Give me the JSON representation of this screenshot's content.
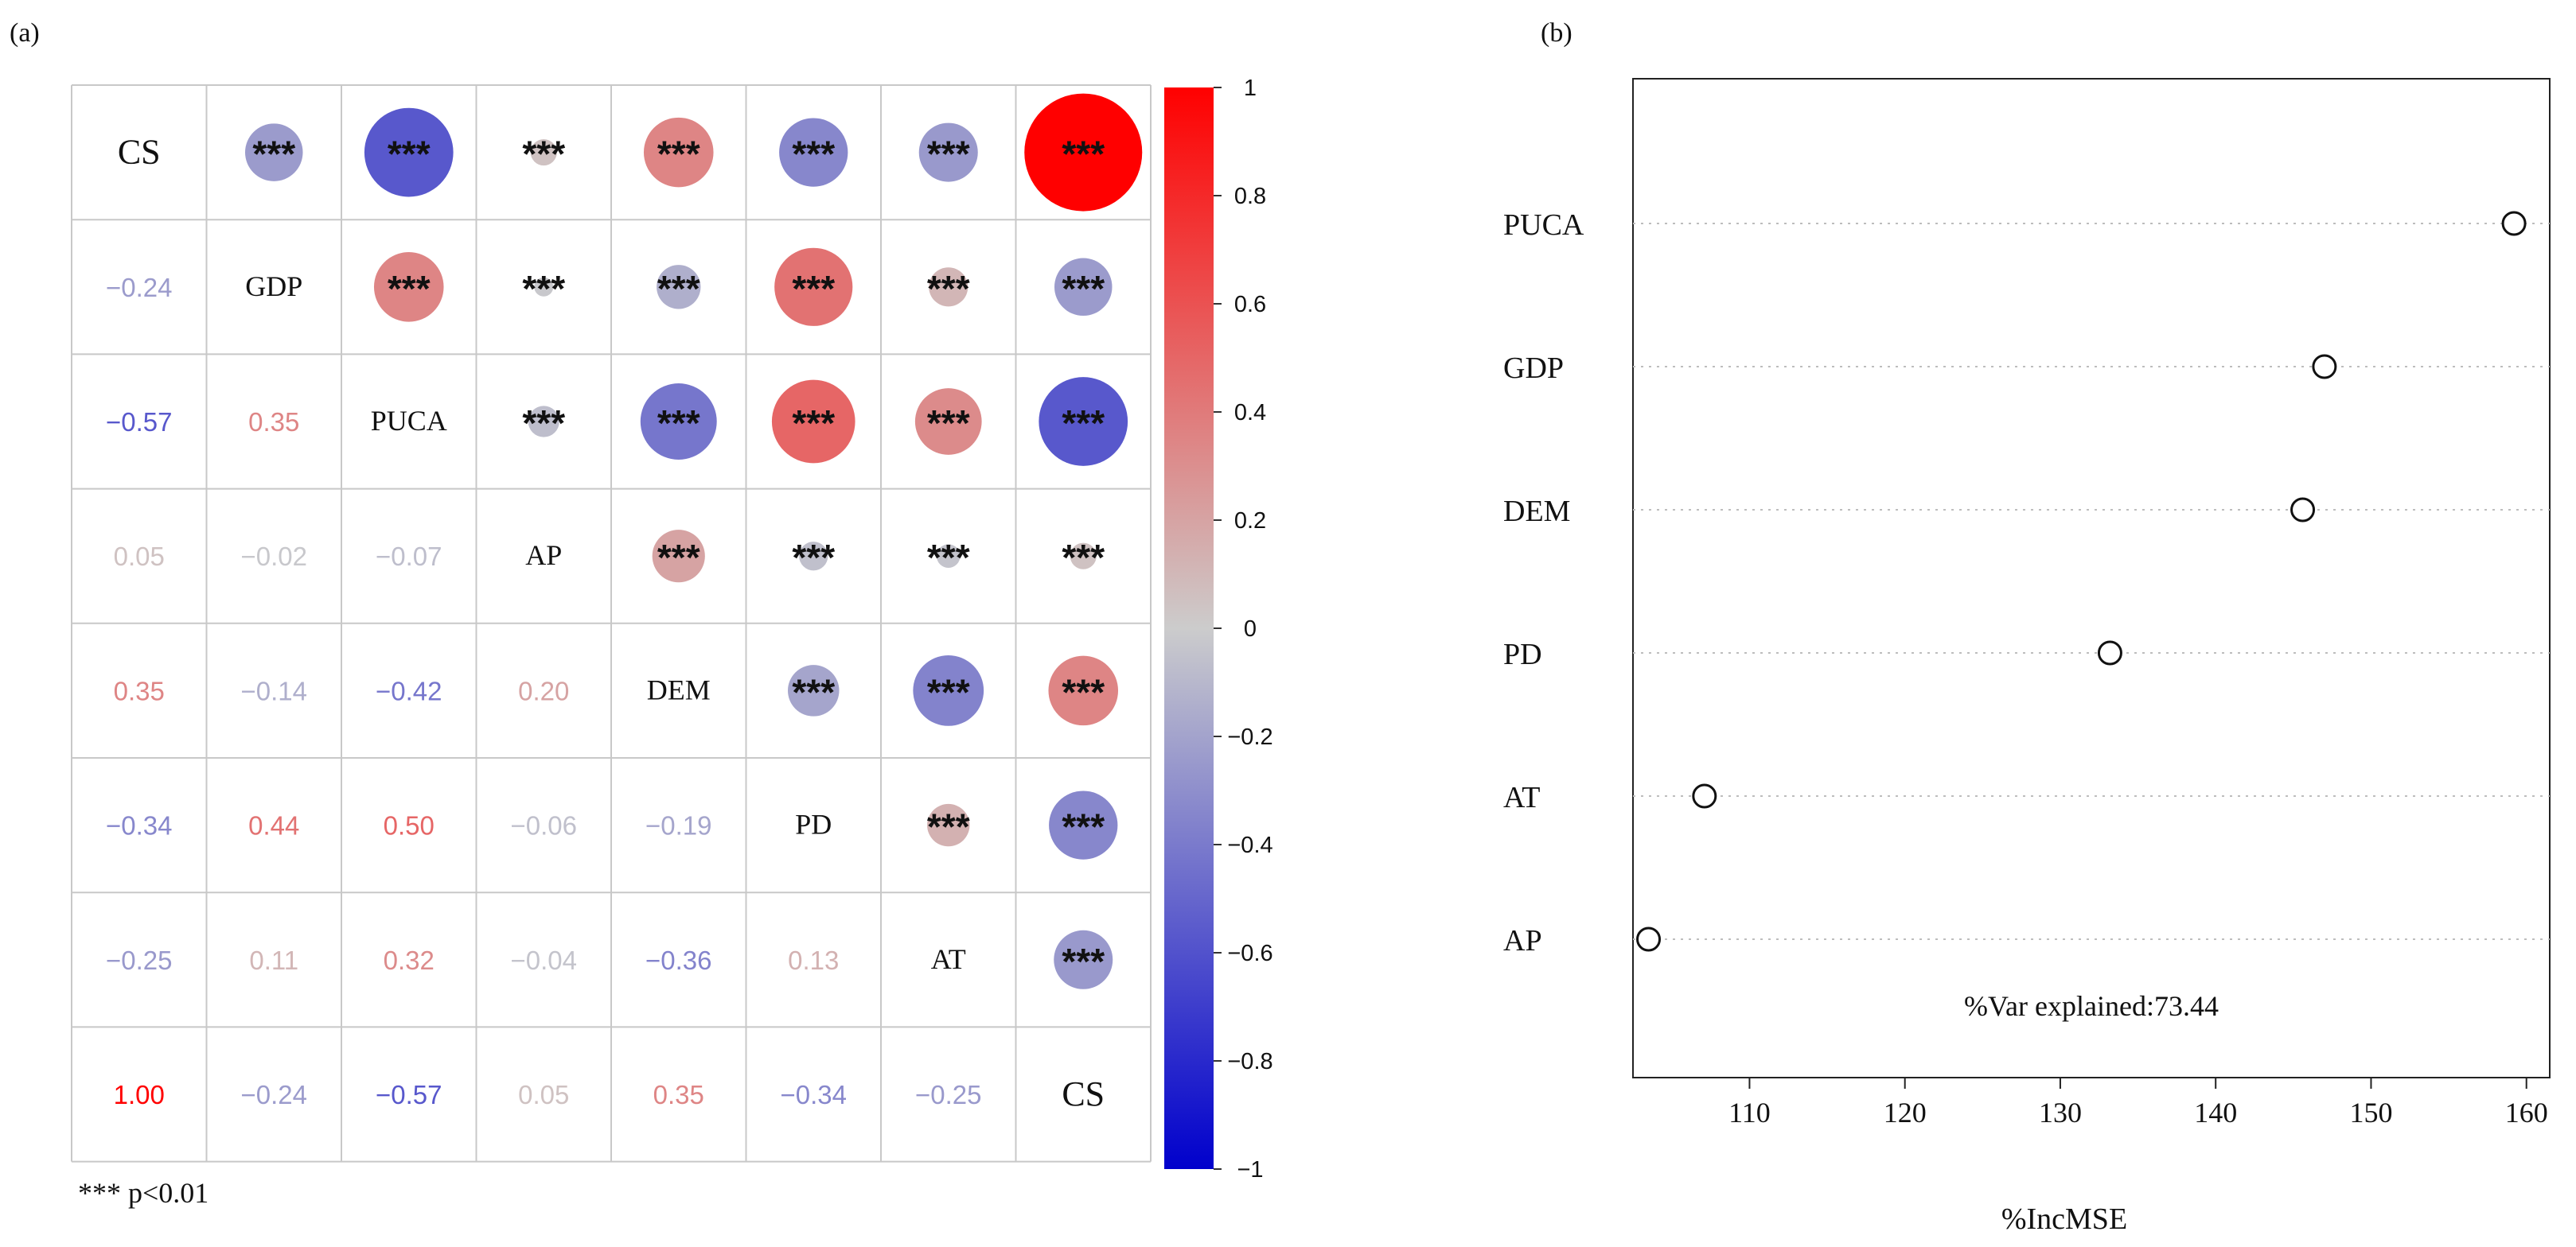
{
  "chart_data": [
    {
      "type": "heatmap",
      "panel_label": "(a)",
      "subtype": "correlation-matrix",
      "variables": [
        "CS",
        "GDP",
        "PUCA",
        "AP",
        "DEM",
        "PD",
        "AT",
        "CS"
      ],
      "lower_values": [
        [],
        [
          -0.24
        ],
        [
          -0.57,
          0.35
        ],
        [
          0.05,
          -0.02,
          -0.07
        ],
        [
          0.35,
          -0.14,
          -0.42,
          0.2
        ],
        [
          -0.34,
          0.44,
          0.5,
          -0.06,
          -0.19
        ],
        [
          -0.25,
          0.11,
          0.32,
          -0.04,
          -0.36,
          0.13
        ],
        [
          1.0,
          -0.24,
          -0.57,
          0.05,
          0.35,
          -0.34,
          -0.25
        ]
      ],
      "significance_mark": "***",
      "footnote": "*** p<0.01",
      "colorbar": {
        "range": [
          -1,
          1
        ],
        "ticks": [
          1,
          0.8,
          0.6,
          0.4,
          0.2,
          0,
          -0.2,
          -0.4,
          -0.6,
          -0.8,
          -1
        ],
        "tick_labels": [
          "1",
          "0.8",
          "0.6",
          "0.4",
          "0.2",
          "0",
          "−0.2",
          "−0.4",
          "−0.6",
          "−0.8",
          "−1"
        ],
        "colors": {
          "low": "#0000cc",
          "mid": "#cccccc",
          "high": "#ff0000"
        }
      }
    },
    {
      "type": "scatter",
      "subtype": "dot-plot",
      "panel_label": "(b)",
      "categories": [
        "PUCA",
        "GDP",
        "DEM",
        "PD",
        "AT",
        "AP"
      ],
      "values": [
        159.2,
        147.0,
        145.6,
        133.2,
        107.1,
        103.5
      ],
      "xlabel": "%IncMSE",
      "xlim": [
        102.5,
        161.5
      ],
      "xticks": [
        110,
        120,
        130,
        140,
        150,
        160
      ],
      "annotation": "%Var explained:73.44"
    }
  ]
}
